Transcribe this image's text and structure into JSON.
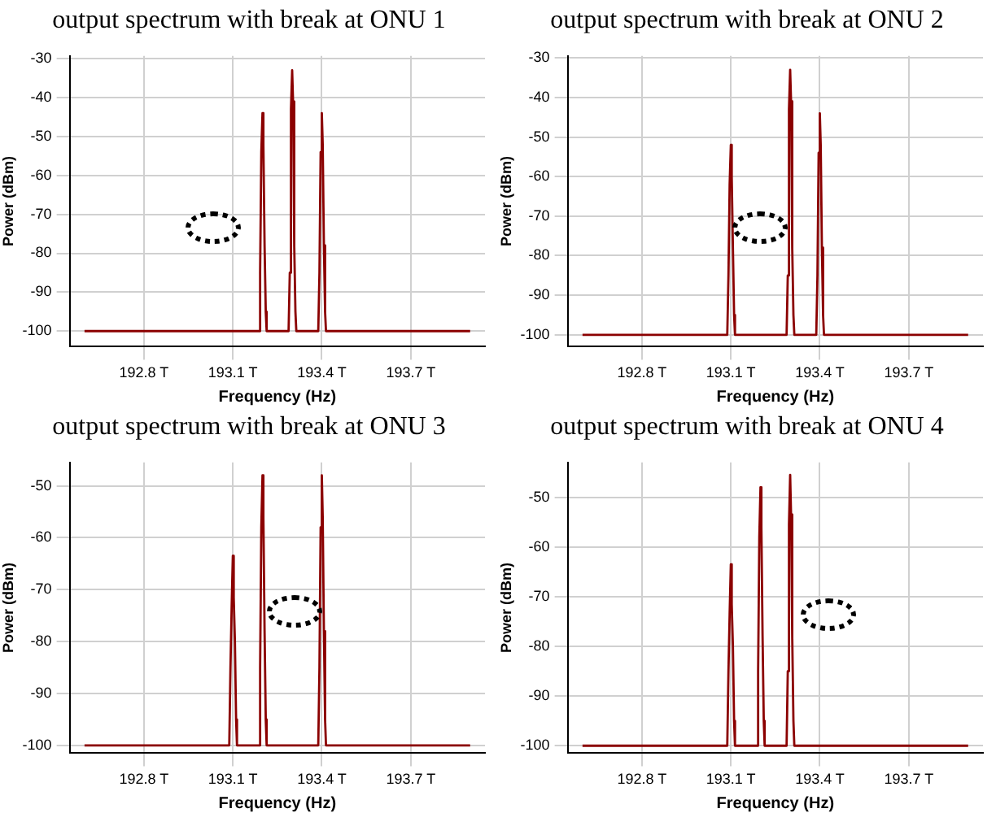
{
  "chart_data": [
    {
      "type": "line",
      "title": "output spectrum with break at ONU 1",
      "xlabel": "Frequency (Hz)",
      "ylabel": "Power (dBm)",
      "xlim": [
        192.55,
        193.95
      ],
      "ylim": [
        -104,
        -29.3
      ],
      "xticks": [
        {
          "value": 192.8,
          "label": "192.8 T"
        },
        {
          "value": 193.1,
          "label": "193.1 T"
        },
        {
          "value": 193.4,
          "label": "193.4 T"
        },
        {
          "value": 193.7,
          "label": "193.7 T"
        }
      ],
      "yticks": [
        -30,
        -40,
        -50,
        -60,
        -70,
        -80,
        -90,
        -100
      ],
      "grid": true,
      "legend": false,
      "marker": "none",
      "line_style": "solid",
      "series": [
        {
          "color": "#8b0000",
          "x": [
            192.6,
            193.188,
            193.192,
            193.196,
            193.2,
            193.203,
            193.207,
            193.211,
            193.214,
            193.288,
            193.292,
            193.296,
            193.3,
            193.303,
            193.307,
            193.311,
            193.314,
            193.388,
            193.392,
            193.396,
            193.4,
            193.403,
            193.407,
            193.411,
            193.414,
            193.9
          ],
          "values": [
            -100,
            -100,
            -85,
            -54,
            -44,
            -52,
            -78,
            -95,
            -100,
            -100,
            -85,
            -43,
            -33,
            -41,
            -78,
            -95,
            -100,
            -100,
            -85,
            -54,
            -44,
            -52,
            -78,
            -95,
            -100,
            -100
          ]
        }
      ]
    },
    {
      "type": "line",
      "title": "output spectrum with break at ONU 2",
      "xlabel": "Frequency (Hz)",
      "ylabel": "Power (dBm)",
      "xlim": [
        192.55,
        193.95
      ],
      "ylim": [
        -103,
        -29.5
      ],
      "xticks": [
        {
          "value": 192.8,
          "label": "192.8 T"
        },
        {
          "value": 193.1,
          "label": "193.1 T"
        },
        {
          "value": 193.4,
          "label": "193.4 T"
        },
        {
          "value": 193.7,
          "label": "193.7 T"
        }
      ],
      "yticks": [
        -30,
        -40,
        -50,
        -60,
        -70,
        -80,
        -90,
        -100
      ],
      "grid": true,
      "legend": false,
      "marker": "none",
      "line_style": "solid",
      "series": [
        {
          "color": "#8b0000",
          "x": [
            192.6,
            193.088,
            193.092,
            193.096,
            193.1,
            193.103,
            193.107,
            193.111,
            193.114,
            193.288,
            193.292,
            193.296,
            193.3,
            193.303,
            193.307,
            193.311,
            193.314,
            193.388,
            193.392,
            193.396,
            193.4,
            193.403,
            193.407,
            193.411,
            193.414,
            193.9
          ],
          "values": [
            -100,
            -100,
            -85,
            -62,
            -52,
            -60,
            -78,
            -95,
            -100,
            -100,
            -85,
            -43,
            -33,
            -41,
            -78,
            -95,
            -100,
            -100,
            -85,
            -54,
            -44,
            -52,
            -78,
            -95,
            -100,
            -100
          ]
        }
      ]
    },
    {
      "type": "line",
      "title": "output spectrum with break at ONU 3",
      "xlabel": "Frequency (Hz)",
      "ylabel": "Power (dBm)",
      "xlim": [
        192.55,
        193.95
      ],
      "ylim": [
        -101.5,
        -45.5
      ],
      "xticks": [
        {
          "value": 192.8,
          "label": "192.8 T"
        },
        {
          "value": 193.1,
          "label": "193.1 T"
        },
        {
          "value": 193.4,
          "label": "193.4 T"
        },
        {
          "value": 193.7,
          "label": "193.7 T"
        }
      ],
      "yticks": [
        -50,
        -60,
        -70,
        -80,
        -90,
        -100
      ],
      "grid": true,
      "legend": false,
      "marker": "none",
      "line_style": "solid",
      "series": [
        {
          "color": "#8b0000",
          "x": [
            192.6,
            193.088,
            193.092,
            193.096,
            193.1,
            193.103,
            193.107,
            193.111,
            193.114,
            193.188,
            193.192,
            193.196,
            193.2,
            193.203,
            193.207,
            193.211,
            193.214,
            193.388,
            193.392,
            193.396,
            193.4,
            193.403,
            193.407,
            193.411,
            193.414,
            193.9
          ],
          "values": [
            -100,
            -100,
            -85,
            -73.5,
            -63.5,
            -71.5,
            -80,
            -95,
            -100,
            -100,
            -85,
            -58,
            -48,
            -56,
            -78,
            -95,
            -100,
            -100,
            -85,
            -58,
            -48,
            -56,
            -78,
            -95,
            -100,
            -100
          ]
        }
      ]
    },
    {
      "type": "line",
      "title": "output spectrum with break at ONU 4",
      "xlabel": "Frequency (Hz)",
      "ylabel": "Power (dBm)",
      "xlim": [
        192.55,
        193.95
      ],
      "ylim": [
        -101.5,
        -43
      ],
      "xticks": [
        {
          "value": 192.8,
          "label": "192.8 T"
        },
        {
          "value": 193.1,
          "label": "193.1 T"
        },
        {
          "value": 193.4,
          "label": "193.4 T"
        },
        {
          "value": 193.7,
          "label": "193.7 T"
        }
      ],
      "yticks": [
        -50,
        -60,
        -70,
        -80,
        -90,
        -100
      ],
      "grid": true,
      "legend": false,
      "marker": "none",
      "line_style": "solid",
      "series": [
        {
          "color": "#8b0000",
          "x": [
            192.6,
            193.088,
            193.092,
            193.096,
            193.1,
            193.103,
            193.107,
            193.111,
            193.114,
            193.188,
            193.192,
            193.196,
            193.2,
            193.203,
            193.207,
            193.211,
            193.214,
            193.288,
            193.292,
            193.296,
            193.3,
            193.303,
            193.307,
            193.311,
            193.314,
            193.9
          ],
          "values": [
            -100,
            -100,
            -85,
            -73.5,
            -63.5,
            -71.5,
            -80,
            -95,
            -100,
            -100,
            -85,
            -58,
            -48,
            -56,
            -78,
            -95,
            -100,
            -100,
            -85,
            -55.5,
            -45.5,
            -53.5,
            -78,
            -95,
            -100,
            -100
          ]
        }
      ]
    }
  ]
}
